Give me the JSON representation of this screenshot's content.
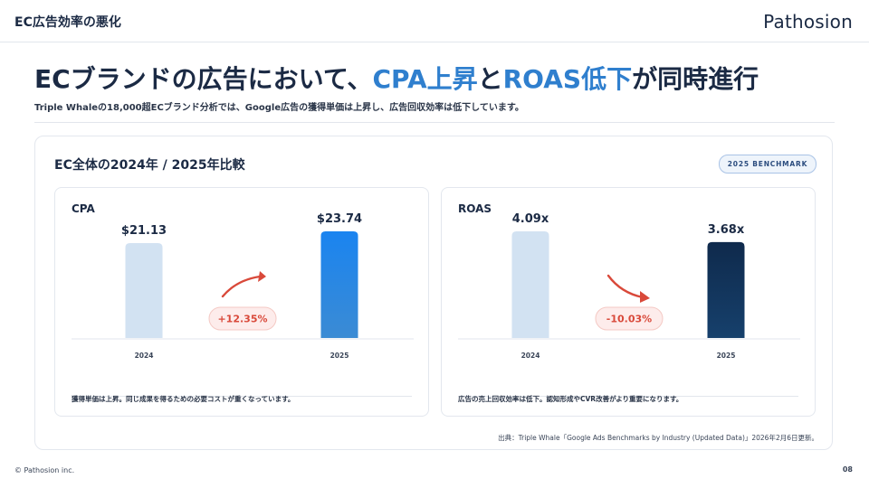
{
  "header": {
    "section_title": "EC広告効率の悪化",
    "logo": "Pathosion"
  },
  "headline": {
    "prefix": "ECブランドの広告において、",
    "highlight1": "CPA上昇",
    "middle": "と",
    "highlight2": "ROAS低下",
    "suffix": "が同時進行"
  },
  "subline": "Triple Whaleの18,000超ECブランド分析では、Google広告の獲得単価は上昇し、広告回収効率は低下しています。",
  "card": {
    "title": "EC全体の2024年 / 2025年比較",
    "badge": "2025 BENCHMARK"
  },
  "chart_data": [
    {
      "type": "bar",
      "label": "CPA",
      "categories": [
        "2024",
        "2025"
      ],
      "values": [
        21.13,
        23.74
      ],
      "value_labels": [
        "$21.13",
        "$23.74"
      ],
      "change_label": "+12.35%",
      "change_direction": "up",
      "bar_colors": [
        "#d2e2f2",
        "#1a7fe8"
      ],
      "note": "獲得単価は上昇。同じ成果を得るための必要コストが重くなっています。"
    },
    {
      "type": "bar",
      "label": "ROAS",
      "categories": [
        "2024",
        "2025"
      ],
      "values": [
        4.09,
        3.68
      ],
      "value_labels": [
        "4.09x",
        "3.68x"
      ],
      "change_label": "-10.03%",
      "change_direction": "down",
      "bar_colors": [
        "#d2e2f2",
        "#133a64"
      ],
      "note": "広告の売上回収効率は低下。認知形成やCVR改善がより重要になります。"
    }
  ],
  "source": "出典：Triple Whale「Google Ads Benchmarks by Industry (Updated Data)」2026年2月6日更新。",
  "footer": {
    "copyright": "© Pathosion inc.",
    "page_number": "08"
  },
  "colors": {
    "accent": "#2f7fce",
    "navy": "#1b2a44",
    "arrow": "#d9493a"
  }
}
